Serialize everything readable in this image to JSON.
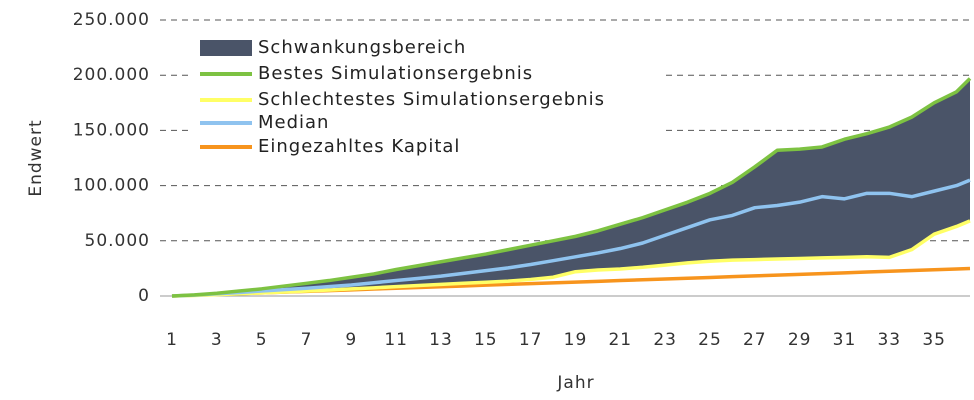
{
  "chart_data": {
    "type": "line",
    "xlabel": "Jahr",
    "ylabel": "Endwert",
    "x": [
      1,
      2,
      3,
      4,
      5,
      6,
      7,
      8,
      9,
      10,
      11,
      12,
      13,
      14,
      15,
      16,
      17,
      18,
      19,
      20,
      21,
      22,
      23,
      24,
      25,
      26,
      27,
      28,
      29,
      30,
      31,
      32,
      33,
      34,
      35,
      36,
      36.6
    ],
    "xlim": [
      1,
      36.6
    ],
    "xticks": [
      1,
      3,
      5,
      7,
      9,
      11,
      13,
      15,
      17,
      19,
      21,
      23,
      25,
      27,
      29,
      31,
      33,
      35
    ],
    "ylim": [
      0,
      250000
    ],
    "yticks": [
      0,
      {
        "value": 50000,
        "label": "50.000"
      },
      {
        "value": 100000,
        "label": "100.000"
      },
      {
        "value": 150000,
        "label": "150.000"
      },
      {
        "value": 200000,
        "label": "200.000"
      },
      {
        "value": 250000,
        "label": "250.000"
      }
    ],
    "grid": true,
    "legend": "upper left",
    "band": {
      "name": "Schwankungsbereich",
      "color": "#4a5468"
    },
    "series": [
      {
        "name": "Bestes Simulationsergebnis",
        "color": "#7dc242",
        "values": [
          0,
          1000,
          2500,
          4500,
          6500,
          9000,
          11500,
          14000,
          17000,
          20000,
          24000,
          27500,
          31000,
          34500,
          38000,
          42000,
          46000,
          50000,
          54000,
          59000,
          65000,
          71000,
          78000,
          85000,
          93000,
          103000,
          117000,
          132000,
          133000,
          135000,
          142000,
          147000,
          153000,
          162000,
          175000,
          185000,
          197000
        ]
      },
      {
        "name": "Schlechtestes Simulationsergebnis",
        "color": "#ffff66",
        "values": [
          0,
          500,
          1200,
          2000,
          2800,
          3600,
          4500,
          5400,
          6400,
          7400,
          8500,
          9500,
          10500,
          11500,
          12500,
          13500,
          15000,
          17000,
          22000,
          23500,
          24500,
          26000,
          28000,
          30000,
          31500,
          32500,
          33000,
          33500,
          34000,
          34500,
          35000,
          35500,
          35000,
          42000,
          56000,
          63000,
          68000
        ]
      },
      {
        "name": "Median",
        "color": "#8fc3ef",
        "values": [
          0,
          800,
          2000,
          3200,
          4500,
          5800,
          7000,
          8500,
          10000,
          12000,
          14000,
          16000,
          18000,
          20500,
          23000,
          25500,
          28500,
          32000,
          35500,
          39000,
          43000,
          48000,
          55000,
          62000,
          69000,
          73000,
          80000,
          82000,
          85000,
          90000,
          88000,
          93000,
          93000,
          90000,
          95000,
          100000,
          105000
        ]
      },
      {
        "name": "Eingezahltes Kapital",
        "color": "#f7941d",
        "values": [
          0,
          700,
          1400,
          2100,
          2800,
          3500,
          4200,
          4900,
          5600,
          6300,
          7000,
          7700,
          8400,
          9100,
          9800,
          10500,
          11200,
          11900,
          12600,
          13300,
          14000,
          14700,
          15400,
          16100,
          16800,
          17500,
          18200,
          18900,
          19600,
          20300,
          21000,
          21700,
          22400,
          23100,
          23800,
          24500,
          24900
        ]
      }
    ]
  }
}
